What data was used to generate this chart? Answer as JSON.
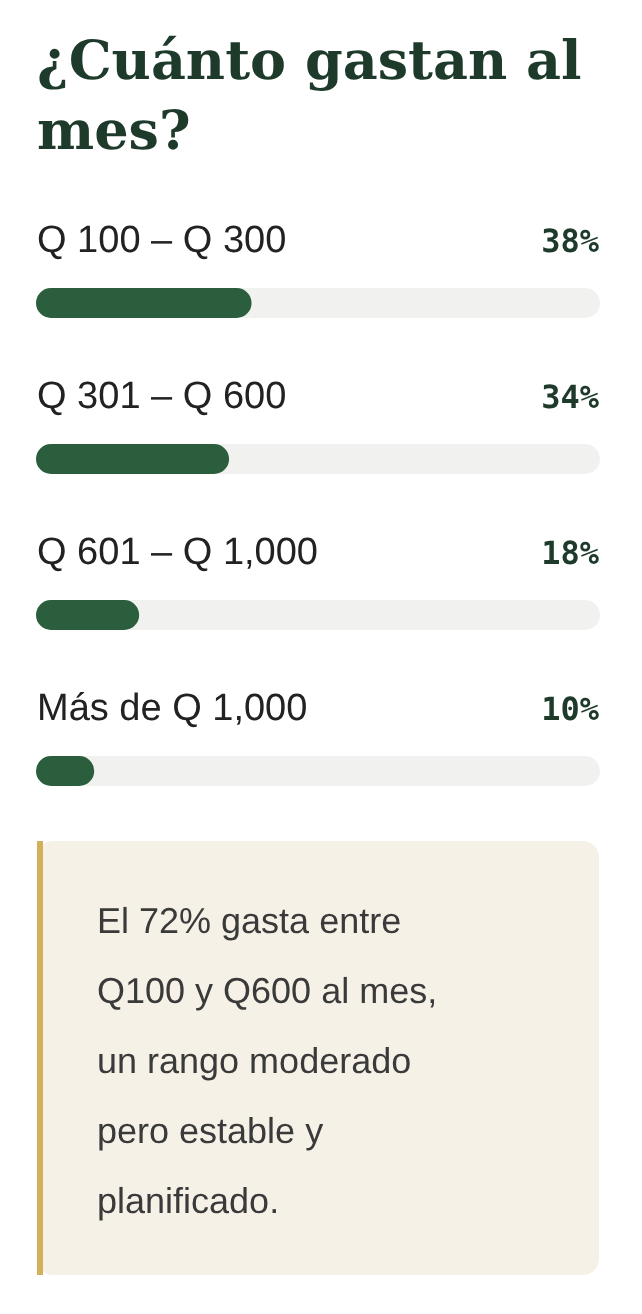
{
  "chart_data": {
    "type": "bar",
    "orientation": "horizontal",
    "title": "¿Cuánto gastan al mes?",
    "categories": [
      "Q 100 – Q 300",
      "Q 301 – Q 600",
      "Q 601 – Q 1,000",
      "Más de Q 1,000"
    ],
    "values": [
      38,
      34,
      18,
      10
    ],
    "value_labels": [
      "38%",
      "34%",
      "18%",
      "10%"
    ],
    "color": "#2b5e3d",
    "xlim": [
      0,
      100
    ],
    "tick_labels": false,
    "annotations": [
      "El 72% gasta entre Q100 y Q600 al mes, un rango moderado pero estable y planificado."
    ]
  }
}
